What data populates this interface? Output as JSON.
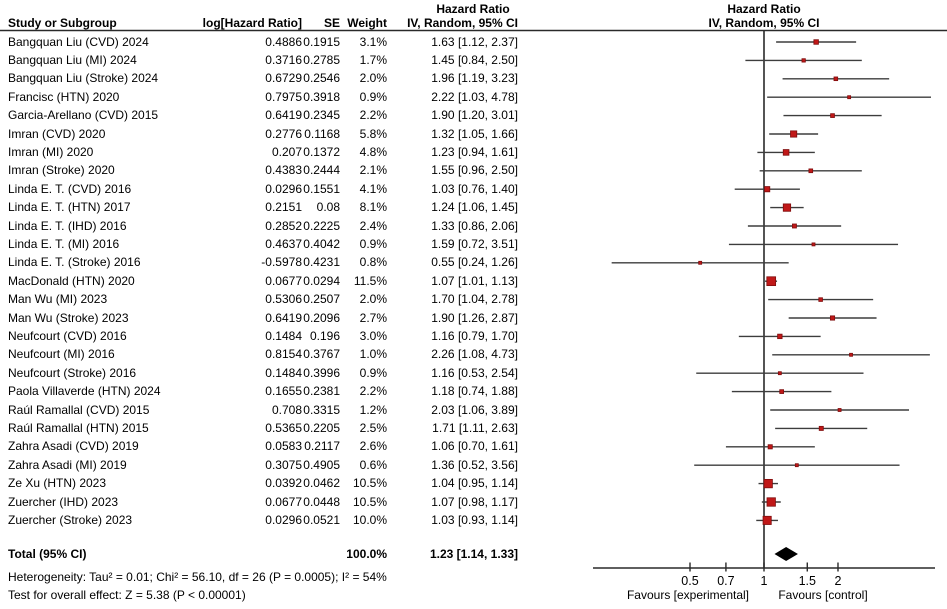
{
  "header": {
    "col_study": "Study or Subgroup",
    "col_loghr": "log[Hazard Ratio]",
    "col_se": "SE",
    "col_weight": "Weight",
    "col_hr_title": "Hazard Ratio",
    "col_hr_subtitle": "IV, Random, 95% CI",
    "plot_title": "Hazard Ratio",
    "plot_subtitle": "IV, Random, 95% CI"
  },
  "chart_data": {
    "type": "forest",
    "scale": "log10",
    "xlim": [
      0.2,
      5.5
    ],
    "axis_ticks": [
      "0.5",
      "0.7",
      "1",
      "1.5",
      "2"
    ],
    "reference_line": 1,
    "favours_left": "Favours [experimental]",
    "favours_right": "Favours [control]",
    "studies": [
      {
        "label": "Bangquan Liu (CVD) 2024",
        "log_hr": "0.4886",
        "se": "0.1915",
        "weight": "3.1%",
        "ci_text": "1.63 [1.12, 2.37]",
        "hr": 1.63,
        "lo": 1.12,
        "hi": 2.37,
        "w": 3.1
      },
      {
        "label": "Bangquan Liu (MI) 2024",
        "log_hr": "0.3716",
        "se": "0.2785",
        "weight": "1.7%",
        "ci_text": "1.45 [0.84, 2.50]",
        "hr": 1.45,
        "lo": 0.84,
        "hi": 2.5,
        "w": 1.7
      },
      {
        "label": "Bangquan Liu (Stroke) 2024",
        "log_hr": "0.6729",
        "se": "0.2546",
        "weight": "2.0%",
        "ci_text": "1.96 [1.19, 3.23]",
        "hr": 1.96,
        "lo": 1.19,
        "hi": 3.23,
        "w": 2.0
      },
      {
        "label": "Francisc (HTN) 2020",
        "log_hr": "0.7975",
        "se": "0.3918",
        "weight": "0.9%",
        "ci_text": "2.22 [1.03, 4.78]",
        "hr": 2.22,
        "lo": 1.03,
        "hi": 4.78,
        "w": 0.9
      },
      {
        "label": "Garcia-Arellano (CVD) 2015",
        "log_hr": "0.6419",
        "se": "0.2345",
        "weight": "2.2%",
        "ci_text": "1.90 [1.20, 3.01]",
        "hr": 1.9,
        "lo": 1.2,
        "hi": 3.01,
        "w": 2.2
      },
      {
        "label": "Imran (CVD) 2020",
        "log_hr": "0.2776",
        "se": "0.1168",
        "weight": "5.8%",
        "ci_text": "1.32 [1.05, 1.66]",
        "hr": 1.32,
        "lo": 1.05,
        "hi": 1.66,
        "w": 5.8
      },
      {
        "label": "Imran (MI) 2020",
        "log_hr": "0.207",
        "se": "0.1372",
        "weight": "4.8%",
        "ci_text": "1.23 [0.94, 1.61]",
        "hr": 1.23,
        "lo": 0.94,
        "hi": 1.61,
        "w": 4.8
      },
      {
        "label": "Imran (Stroke) 2020",
        "log_hr": "0.4383",
        "se": "0.2444",
        "weight": "2.1%",
        "ci_text": "1.55 [0.96, 2.50]",
        "hr": 1.55,
        "lo": 0.96,
        "hi": 2.5,
        "w": 2.1
      },
      {
        "label": "Linda E. T. (CVD) 2016",
        "log_hr": "0.0296",
        "se": "0.1551",
        "weight": "4.1%",
        "ci_text": "1.03 [0.76, 1.40]",
        "hr": 1.03,
        "lo": 0.76,
        "hi": 1.4,
        "w": 4.1
      },
      {
        "label": "Linda E. T. (HTN) 2017",
        "log_hr": "0.2151",
        "se": "0.08",
        "weight": "8.1%",
        "ci_text": "1.24 [1.06, 1.45]",
        "hr": 1.24,
        "lo": 1.06,
        "hi": 1.45,
        "w": 8.1
      },
      {
        "label": "Linda E. T. (IHD) 2016",
        "log_hr": "0.2852",
        "se": "0.2225",
        "weight": "2.4%",
        "ci_text": "1.33 [0.86, 2.06]",
        "hr": 1.33,
        "lo": 0.86,
        "hi": 2.06,
        "w": 2.4
      },
      {
        "label": "Linda E. T. (MI) 2016",
        "log_hr": "0.4637",
        "se": "0.4042",
        "weight": "0.9%",
        "ci_text": "1.59 [0.72, 3.51]",
        "hr": 1.59,
        "lo": 0.72,
        "hi": 3.51,
        "w": 0.9
      },
      {
        "label": "Linda E. T. (Stroke) 2016",
        "log_hr": "-0.5978",
        "se": "0.4231",
        "weight": "0.8%",
        "ci_text": "0.55 [0.24, 1.26]",
        "hr": 0.55,
        "lo": 0.24,
        "hi": 1.26,
        "w": 0.8
      },
      {
        "label": "MacDonald (HTN) 2020",
        "log_hr": "0.0677",
        "se": "0.0294",
        "weight": "11.5%",
        "ci_text": "1.07 [1.01, 1.13]",
        "hr": 1.07,
        "lo": 1.01,
        "hi": 1.13,
        "w": 11.5
      },
      {
        "label": "Man Wu (MI) 2023",
        "log_hr": "0.5306",
        "se": "0.2507",
        "weight": "2.0%",
        "ci_text": "1.70 [1.04, 2.78]",
        "hr": 1.7,
        "lo": 1.04,
        "hi": 2.78,
        "w": 2.0
      },
      {
        "label": "Man Wu (Stroke) 2023",
        "log_hr": "0.6419",
        "se": "0.2096",
        "weight": "2.7%",
        "ci_text": "1.90 [1.26, 2.87]",
        "hr": 1.9,
        "lo": 1.26,
        "hi": 2.87,
        "w": 2.7
      },
      {
        "label": "Neufcourt (CVD) 2016",
        "log_hr": "0.1484",
        "se": "0.196",
        "weight": "3.0%",
        "ci_text": "1.16 [0.79, 1.70]",
        "hr": 1.16,
        "lo": 0.79,
        "hi": 1.7,
        "w": 3.0
      },
      {
        "label": "Neufcourt (MI) 2016",
        "log_hr": "0.8154",
        "se": "0.3767",
        "weight": "1.0%",
        "ci_text": "2.26 [1.08, 4.73]",
        "hr": 2.26,
        "lo": 1.08,
        "hi": 4.73,
        "w": 1.0
      },
      {
        "label": "Neufcourt (Stroke) 2016",
        "log_hr": "0.1484",
        "se": "0.3996",
        "weight": "0.9%",
        "ci_text": "1.16 [0.53, 2.54]",
        "hr": 1.16,
        "lo": 0.53,
        "hi": 2.54,
        "w": 0.9
      },
      {
        "label": "Paola Villaverde (HTN) 2024",
        "log_hr": "0.1655",
        "se": "0.2381",
        "weight": "2.2%",
        "ci_text": "1.18 [0.74, 1.88]",
        "hr": 1.18,
        "lo": 0.74,
        "hi": 1.88,
        "w": 2.2
      },
      {
        "label": "Raúl Ramallal (CVD) 2015",
        "log_hr": "0.708",
        "se": "0.3315",
        "weight": "1.2%",
        "ci_text": "2.03 [1.06, 3.89]",
        "hr": 2.03,
        "lo": 1.06,
        "hi": 3.89,
        "w": 1.2
      },
      {
        "label": "Raúl Ramallal (HTN) 2015",
        "log_hr": "0.5365",
        "se": "0.2205",
        "weight": "2.5%",
        "ci_text": "1.71 [1.11, 2.63]",
        "hr": 1.71,
        "lo": 1.11,
        "hi": 2.63,
        "w": 2.5
      },
      {
        "label": "Zahra Asadi (CVD) 2019",
        "log_hr": "0.0583",
        "se": "0.2117",
        "weight": "2.6%",
        "ci_text": "1.06 [0.70, 1.61]",
        "hr": 1.06,
        "lo": 0.7,
        "hi": 1.61,
        "w": 2.6
      },
      {
        "label": "Zahra Asadi (MI) 2019",
        "log_hr": "0.3075",
        "se": "0.4905",
        "weight": "0.6%",
        "ci_text": "1.36 [0.52, 3.56]",
        "hr": 1.36,
        "lo": 0.52,
        "hi": 3.56,
        "w": 0.6
      },
      {
        "label": "Ze Xu (HTN) 2023",
        "log_hr": "0.0392",
        "se": "0.0462",
        "weight": "10.5%",
        "ci_text": "1.04 [0.95, 1.14]",
        "hr": 1.04,
        "lo": 0.95,
        "hi": 1.14,
        "w": 10.5
      },
      {
        "label": "Zuercher (IHD) 2023",
        "log_hr": "0.0677",
        "se": "0.0448",
        "weight": "10.5%",
        "ci_text": "1.07 [0.98, 1.17]",
        "hr": 1.07,
        "lo": 0.98,
        "hi": 1.17,
        "w": 10.5
      },
      {
        "label": "Zuercher (Stroke) 2023",
        "log_hr": "0.0296",
        "se": "0.0521",
        "weight": "10.0%",
        "ci_text": "1.03 [0.93, 1.14]",
        "hr": 1.03,
        "lo": 0.93,
        "hi": 1.14,
        "w": 10.0
      }
    ],
    "total": {
      "label": "Total (95% CI)",
      "weight": "100.0%",
      "ci_text": "1.23 [1.14, 1.33]",
      "hr": 1.23,
      "lo": 1.14,
      "hi": 1.33
    }
  },
  "footer": {
    "heterogeneity": "Heterogeneity: Tau² = 0.01; Chi² = 56.10, df = 26 (P = 0.0005); I² = 54%",
    "overall_effect": "Test for overall effect: Z = 5.38 (P < 0.00001)"
  },
  "colors": {
    "marker_fill": "#c01818",
    "marker_border": "#7f0d0d",
    "ci_line": "#3d3d3d",
    "axis_line": "#2a2a2a",
    "diamond": "#000000",
    "text": "#000000"
  }
}
